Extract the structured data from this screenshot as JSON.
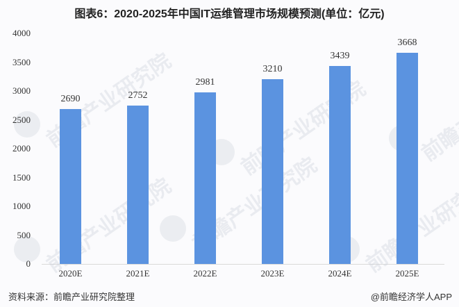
{
  "title": "图表6：2020-2025年中国IT运维管理市场规模预测(单位：亿元)",
  "source": "资料来源：前瞻产业研究院整理",
  "credit": "@前瞻经济学人APP",
  "watermark": "前瞻产业研究院",
  "colors": {
    "bar": "#5b93e0",
    "axis": "#d9d9d9",
    "text": "#333333",
    "background": "#fbfbfd"
  },
  "chart_data": {
    "type": "bar",
    "title": "图表6：2020-2025年中国IT运维管理市场规模预测(单位：亿元)",
    "xlabel": "",
    "ylabel": "",
    "unit": "亿元",
    "categories": [
      "2020E",
      "2021E",
      "2022E",
      "2023E",
      "2024E",
      "2025E"
    ],
    "values": [
      2690,
      2752,
      2981,
      3210,
      3439,
      3668
    ],
    "ylim": [
      0,
      4000
    ],
    "yticks": [
      0,
      500,
      1000,
      1500,
      2000,
      2500,
      3000,
      3500,
      4000
    ],
    "grid": false,
    "legend": null,
    "data_labels": true
  }
}
